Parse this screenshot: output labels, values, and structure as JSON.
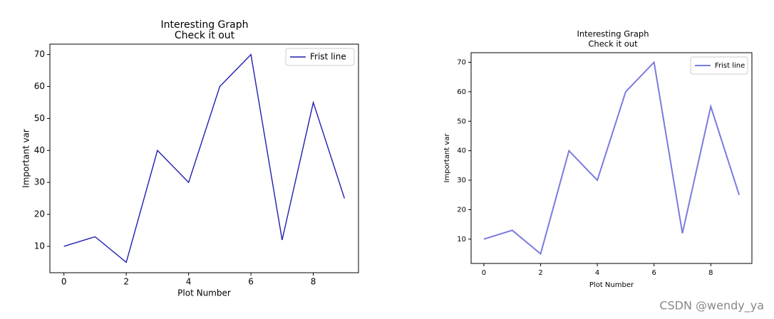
{
  "chart_data": [
    {
      "type": "line",
      "title": "Interesting Graph",
      "subtitle": "Check it out",
      "x_label": "Plot Number",
      "y_label": "Important var",
      "x": [
        0,
        1,
        2,
        3,
        4,
        5,
        6,
        7,
        8,
        9
      ],
      "series": [
        {
          "name": "Frist line",
          "color": "#1f1fb0",
          "values": [
            10,
            13,
            5,
            40,
            30,
            60,
            70,
            12,
            55,
            25
          ]
        }
      ],
      "xlim": [
        -0.45,
        9.45
      ],
      "ylim": [
        1.75,
        73.25
      ],
      "xticks": [
        0,
        2,
        4,
        6,
        8
      ],
      "yticks": [
        10,
        20,
        30,
        40,
        50,
        60,
        70
      ],
      "legend": "upper right",
      "grid": false
    },
    {
      "type": "line",
      "title": "Interesting Graph",
      "subtitle": "Check it out",
      "x_label": "Plot Number",
      "y_label": "Important var",
      "x": [
        0,
        1,
        2,
        3,
        4,
        5,
        6,
        7,
        8,
        9
      ],
      "series": [
        {
          "name": "Frist line",
          "color": "#7a7ae0",
          "values": [
            10,
            13,
            5,
            40,
            30,
            60,
            70,
            12,
            55,
            25
          ]
        }
      ],
      "xlim": [
        -0.45,
        9.45
      ],
      "ylim": [
        1.75,
        73.25
      ],
      "xticks": [
        0,
        2,
        4,
        6,
        8
      ],
      "yticks": [
        10,
        20,
        30,
        40,
        50,
        60,
        70
      ],
      "legend": "upper right",
      "grid": false
    }
  ],
  "watermark": "CSDN @wendy_ya"
}
